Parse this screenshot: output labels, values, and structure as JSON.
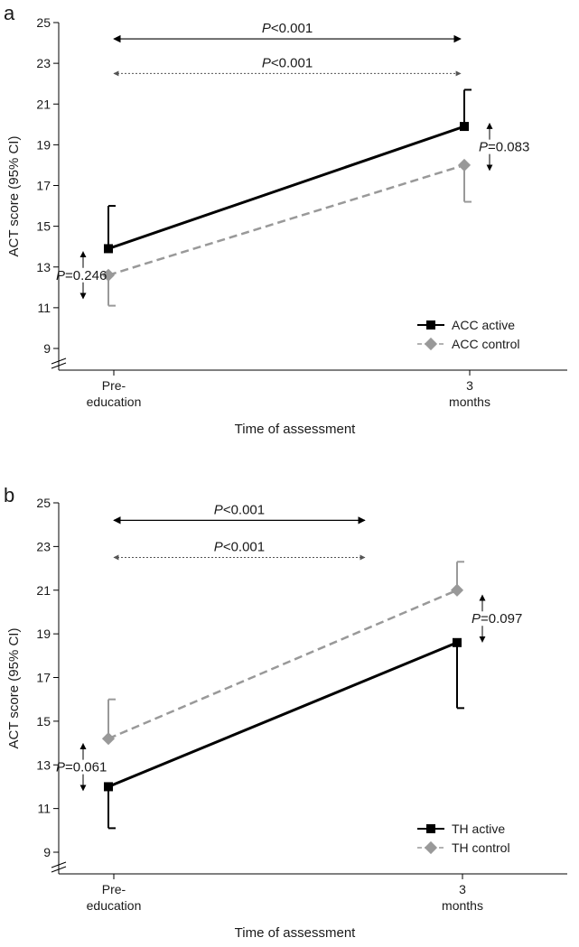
{
  "chart_data": [
    {
      "panel": "a",
      "type": "line",
      "title": "",
      "xlabel": "Time of assessment",
      "ylabel": "ACT score (95% CI)",
      "ylim": [
        9,
        25
      ],
      "yticks": [
        "9",
        "11",
        "13",
        "15",
        "17",
        "19",
        "21",
        "23",
        "25"
      ],
      "categories": [
        {
          "line1": "Pre-",
          "line2": "education"
        },
        {
          "line1": "3",
          "line2": "months"
        }
      ],
      "series": [
        {
          "name": "ACC active",
          "color": "#000000",
          "dash": "solid",
          "marker": "square",
          "errorDirection": "up",
          "values": [
            13.9,
            19.9
          ],
          "ci": [
            16.0,
            21.7
          ]
        },
        {
          "name": "ACC control",
          "color": "#999999",
          "dash": "dashed",
          "marker": "diamond",
          "errorDirection": "down",
          "values": [
            12.6,
            18.0
          ],
          "ci": [
            11.1,
            16.2
          ]
        }
      ],
      "brackets": [
        {
          "style": "solid",
          "label": "<0.001",
          "y": 24.2
        },
        {
          "style": "dotted",
          "label": "<0.001",
          "y": 22.5
        }
      ],
      "side_pvalues": [
        {
          "label": "=0.246",
          "category": 0,
          "side": "left",
          "center": 12.6
        },
        {
          "label": "=0.083",
          "category": 1,
          "side": "right",
          "center": 18.9
        }
      ],
      "legend": {
        "position": "bottom-right"
      }
    },
    {
      "panel": "b",
      "type": "line",
      "title": "",
      "xlabel": "Time of assessment",
      "ylabel": "ACT score (95% CI)",
      "ylim": [
        9,
        25
      ],
      "yticks": [
        "9",
        "11",
        "13",
        "15",
        "17",
        "19",
        "21",
        "23",
        "25"
      ],
      "categories": [
        {
          "line1": "Pre-",
          "line2": "education"
        },
        {
          "line1": "3",
          "line2": "months"
        }
      ],
      "series": [
        {
          "name": "TH active",
          "color": "#000000",
          "dash": "solid",
          "marker": "square",
          "errorDirection": "down",
          "values": [
            12.0,
            18.6
          ],
          "ci": [
            10.1,
            15.6
          ]
        },
        {
          "name": "TH control",
          "color": "#999999",
          "dash": "dashed",
          "marker": "diamond",
          "errorDirection": "up",
          "values": [
            14.2,
            21.0
          ],
          "ci": [
            16.0,
            22.3
          ]
        }
      ],
      "brackets": [
        {
          "style": "solid",
          "label": "<0.001",
          "y": 24.2,
          "endFraction": 0.72
        },
        {
          "style": "dotted",
          "label": "<0.001",
          "y": 22.5,
          "endFraction": 0.72
        }
      ],
      "side_pvalues": [
        {
          "label": "=0.061",
          "category": 0,
          "side": "left",
          "center": 12.9
        },
        {
          "label": "=0.097",
          "category": 1,
          "side": "right",
          "center": 19.7
        }
      ],
      "legend": {
        "position": "bottom-right"
      }
    }
  ]
}
